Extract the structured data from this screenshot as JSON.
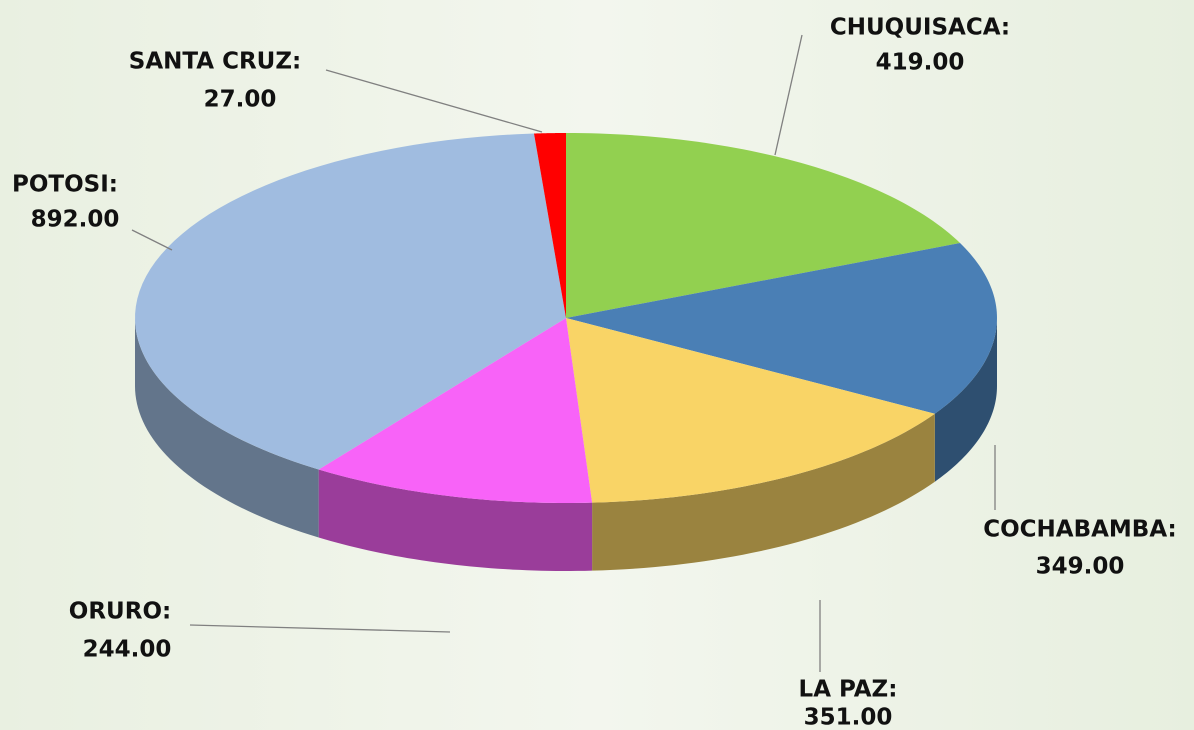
{
  "chart_data": {
    "type": "pie3d",
    "categories": [
      "CHUQUISACA:",
      "COCHABAMBA:",
      "LA PAZ:",
      "ORURO:",
      "POTOSI:",
      "SANTA CRUZ:"
    ],
    "values": [
      419,
      349,
      351,
      244,
      892,
      27
    ],
    "value_labels": [
      "419.00",
      "349.00",
      "351.00",
      "244.00",
      "892.00",
      "27.00"
    ],
    "colors": [
      "#92d050",
      "#4a7fb5",
      "#f9d466",
      "#f863f8",
      "#a0bce0",
      "#ff0000"
    ]
  }
}
